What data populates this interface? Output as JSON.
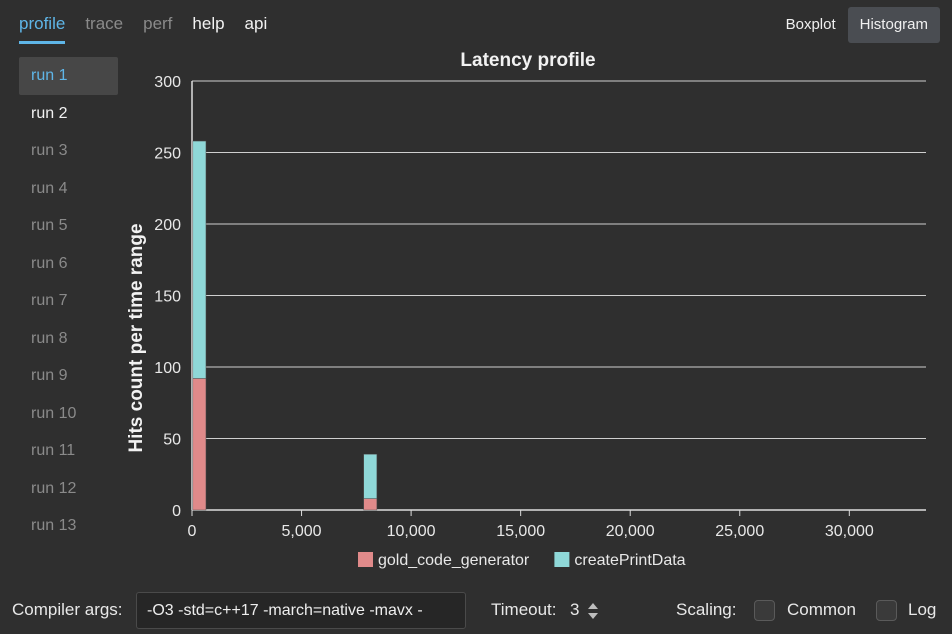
{
  "tabs": [
    {
      "label": "profile",
      "state": "active"
    },
    {
      "label": "trace",
      "state": "dim"
    },
    {
      "label": "perf",
      "state": "dim"
    },
    {
      "label": "help",
      "state": "bright"
    },
    {
      "label": "api",
      "state": "bright"
    }
  ],
  "view_buttons": {
    "boxplot": "Boxplot",
    "histogram": "Histogram",
    "active": "histogram"
  },
  "runs": [
    "run 1",
    "run 2",
    "run 3",
    "run 4",
    "run 5",
    "run 6",
    "run 7",
    "run 8",
    "run 9",
    "run 10",
    "run 11",
    "run 12",
    "run 13"
  ],
  "selected_run": "run 1",
  "chart_data": {
    "type": "bar",
    "stacked": true,
    "title": "Latency profile",
    "ylabel": "Hits count per time range",
    "xlabel": "",
    "xlim": [
      0,
      33500
    ],
    "ylim": [
      0,
      300
    ],
    "xticks": [
      0,
      5000,
      10000,
      15000,
      20000,
      25000,
      30000
    ],
    "xtick_labels": [
      "0",
      "5,000",
      "10,000",
      "15,000",
      "20,000",
      "25,000",
      "30,000"
    ],
    "yticks": [
      0,
      50,
      100,
      150,
      200,
      250,
      300
    ],
    "grid": "horizontal",
    "legend_placement": "bottom",
    "bin_width": 600,
    "series": [
      {
        "name": "gold_code_generator",
        "color": "#e08a8a",
        "bins": [
          {
            "x": 200,
            "value": 92
          },
          {
            "x": 8000,
            "value": 8
          }
        ]
      },
      {
        "name": "createPrintData",
        "color": "#8fd8d8",
        "bins": [
          {
            "x": 200,
            "value": 166
          },
          {
            "x": 8000,
            "value": 31
          }
        ]
      }
    ]
  },
  "bottom": {
    "compiler_label": "Compiler args:",
    "compiler_value": "-O3 -std=c++17 -march=native -mavx -",
    "timeout_label": "Timeout:",
    "timeout_value": "3",
    "scaling_label": "Scaling:",
    "common_label": "Common",
    "log_label": "Log",
    "common_checked": false,
    "log_checked": false
  }
}
